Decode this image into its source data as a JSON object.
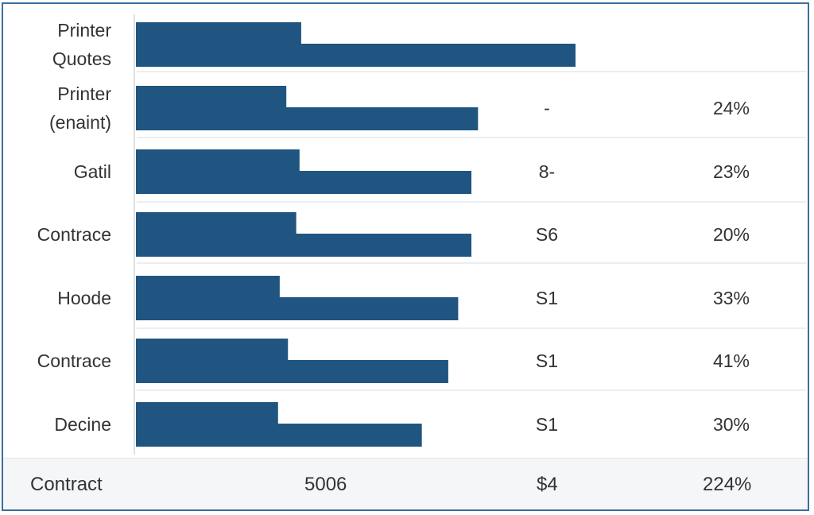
{
  "chart_data": {
    "type": "bar",
    "bar_color": "#1f5580",
    "categories": [
      "Printer Quotes",
      "Printer (enaint)",
      "Gatil",
      "Contrace",
      "Hoode",
      "Contrace",
      "Decine"
    ],
    "category_lines": [
      [
        "Printer",
        "Quotes"
      ],
      [
        "Printer",
        "(enaint)"
      ],
      [
        "Gatil"
      ],
      [
        "Contrace"
      ],
      [
        "Hoode"
      ],
      [
        "Contrace"
      ],
      [
        "Decine"
      ]
    ],
    "series": [
      {
        "values": [
          100,
          91,
          99,
          97,
          87,
          92,
          86
        ]
      },
      {
        "values": [
          266,
          207,
          203,
          203,
          195,
          189,
          173
        ]
      }
    ],
    "xlim": [
      0,
      266
    ],
    "columns": [
      {
        "values": [
          "",
          "-",
          "8-",
          "S6",
          "S1",
          "S1",
          "S1"
        ]
      },
      {
        "values": [
          "",
          "24%",
          "23%",
          "20%",
          "33%",
          "41%",
          "30%"
        ]
      }
    ],
    "grid": true
  },
  "footer": {
    "label": "Contract",
    "value1": "5006",
    "value2": "$4",
    "value3": "224%"
  }
}
